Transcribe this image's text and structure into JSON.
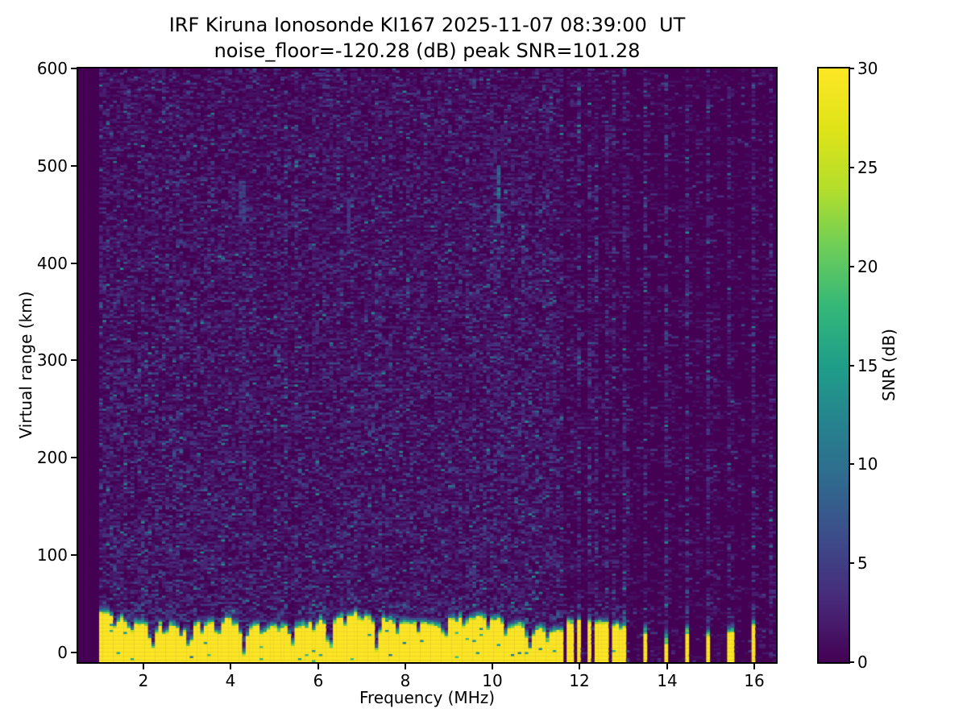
{
  "figure": {
    "title_line1": "IRF Kiruna Ionosonde KI167 2025-11-07 08:39:00  UT",
    "title_line2": "noise_floor=-120.28 (dB) peak SNR=101.28",
    "station_id": "KI167",
    "timestamp_ut": "2025-11-07 08:39:00",
    "noise_floor_db": -120.28,
    "peak_snr_db": 101.28
  },
  "chart_data": {
    "type": "heatmap",
    "title": "IRF Kiruna Ionosonde KI167 2025-11-07 08:39:00  UT\nnoise_floor=-120.28 (dB) peak SNR=101.28",
    "xlabel": "Frequency (MHz)",
    "ylabel": "Virtual range (km)",
    "colorbar_label": "SNR (dB)",
    "xlim": [
      0.5,
      16.5
    ],
    "ylim": [
      -10,
      600
    ],
    "clim": [
      0,
      30
    ],
    "x_ticks": [
      2,
      4,
      6,
      8,
      10,
      12,
      14,
      16
    ],
    "y_ticks": [
      0,
      100,
      200,
      300,
      400,
      500,
      600
    ],
    "colorbar_ticks": [
      0,
      5,
      10,
      15,
      20,
      25,
      30
    ],
    "grid": false,
    "colormap": {
      "name": "viridis",
      "stops": [
        "#440154",
        "#482878",
        "#3e4989",
        "#31688e",
        "#26828e",
        "#1f9e89",
        "#35b779",
        "#6ece58",
        "#b5de2b",
        "#dfe318",
        "#fde725"
      ]
    },
    "background_snr_db": 0,
    "no_data_below_mhz": 1.0,
    "noise_speckle": {
      "fill_probability": 0.45,
      "typical_snr_db": [
        1,
        4
      ],
      "bright_snr_db": [
        5,
        12
      ],
      "low_altitude_boost": 0.35
    },
    "ground_clutter": {
      "sweep_start_mhz": 1.0,
      "sweep_end_mhz": 11.62,
      "mean_top_km": 30,
      "edge_width_km": 12,
      "snr_db": 30,
      "notches_f_depth_width": [
        [
          1.35,
          8,
          0.05
        ],
        [
          1.7,
          12,
          0.06
        ],
        [
          2.2,
          24,
          0.07
        ],
        [
          2.5,
          14,
          0.06
        ],
        [
          2.85,
          10,
          0.05
        ],
        [
          3.05,
          26,
          0.09
        ],
        [
          3.35,
          12,
          0.05
        ],
        [
          3.7,
          16,
          0.07
        ],
        [
          4.3,
          30,
          0.08
        ],
        [
          4.75,
          10,
          0.05
        ],
        [
          5.4,
          16,
          0.07
        ],
        [
          5.9,
          9,
          0.05
        ],
        [
          6.27,
          32,
          0.08
        ],
        [
          6.65,
          12,
          0.05
        ],
        [
          7.0,
          10,
          0.05
        ],
        [
          7.35,
          32,
          0.08
        ],
        [
          7.8,
          10,
          0.05
        ],
        [
          8.3,
          12,
          0.06
        ],
        [
          8.9,
          18,
          0.08
        ],
        [
          9.35,
          10,
          0.05
        ],
        [
          9.9,
          12,
          0.06
        ],
        [
          10.3,
          14,
          0.06
        ],
        [
          10.85,
          22,
          0.07
        ],
        [
          11.25,
          12,
          0.06
        ]
      ]
    },
    "discrete_bars_f_top_cap": [
      [
        11.78,
        30,
        12
      ],
      [
        11.99,
        30,
        12
      ],
      [
        12.21,
        28,
        12
      ],
      [
        12.4,
        30,
        12
      ],
      [
        12.59,
        28,
        12
      ],
      [
        12.8,
        26,
        12
      ],
      [
        13.0,
        24,
        14
      ],
      [
        13.49,
        18,
        16
      ],
      [
        13.99,
        10,
        26
      ],
      [
        14.47,
        18,
        16
      ],
      [
        14.93,
        16,
        18
      ],
      [
        15.45,
        20,
        16
      ],
      [
        15.97,
        26,
        14
      ]
    ],
    "bar_half_width_mhz": 0.062,
    "noise_stripes_f_strength": [
      [
        11.78,
        0.9
      ],
      [
        11.9,
        0.35
      ],
      [
        11.99,
        0.9
      ],
      [
        12.1,
        0.3
      ],
      [
        12.21,
        0.9
      ],
      [
        12.3,
        0.3
      ],
      [
        12.4,
        0.9
      ],
      [
        12.5,
        0.3
      ],
      [
        12.59,
        0.9
      ],
      [
        12.68,
        0.3
      ],
      [
        12.8,
        0.9
      ],
      [
        12.9,
        0.3
      ],
      [
        13.0,
        0.9
      ],
      [
        13.1,
        0.4
      ],
      [
        13.3,
        0.3
      ],
      [
        13.49,
        0.9
      ],
      [
        13.65,
        0.3
      ],
      [
        13.8,
        0.25
      ],
      [
        13.99,
        0.9
      ],
      [
        14.15,
        0.3
      ],
      [
        14.3,
        0.25
      ],
      [
        14.47,
        0.9
      ],
      [
        14.7,
        0.3
      ],
      [
        14.93,
        0.9
      ],
      [
        15.1,
        0.3
      ],
      [
        15.2,
        0.25
      ],
      [
        15.45,
        0.9
      ],
      [
        15.7,
        0.3
      ],
      [
        15.97,
        0.9
      ],
      [
        16.1,
        0.3
      ],
      [
        16.25,
        0.3
      ],
      [
        16.4,
        0.7
      ]
    ],
    "interference_streaks": [
      {
        "f_mhz": 10.17,
        "km_range": [
          440,
          500
        ],
        "snr_db": 11
      },
      {
        "f_mhz": 4.27,
        "km_range": [
          445,
          485
        ],
        "snr_db": 6
      },
      {
        "f_mhz": 6.7,
        "km_range": [
          430,
          465
        ],
        "snr_db": 5
      }
    ]
  }
}
